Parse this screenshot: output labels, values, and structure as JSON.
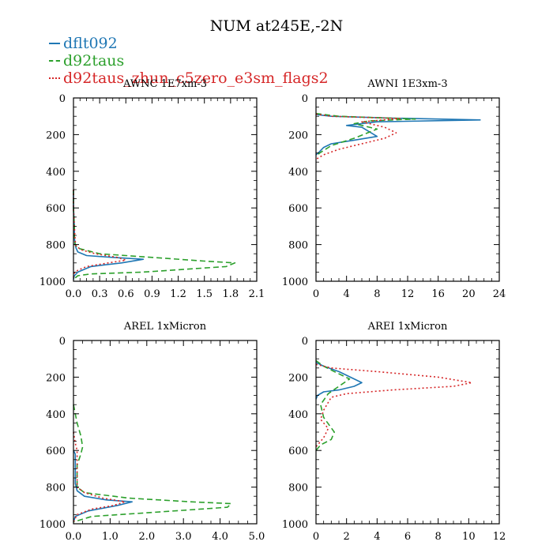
{
  "figure": {
    "title": "NUM at245E,-2N"
  },
  "legend": [
    {
      "name": "dflt092",
      "color": "#1f77b4",
      "style": "solid"
    },
    {
      "name": "d92taus",
      "color": "#2ca02c",
      "style": "dashed"
    },
    {
      "name": "d92taus_zhun_c5zero_e3sm_flags2",
      "color": "#d62728",
      "style": "dotted"
    }
  ],
  "chart_data": [
    {
      "type": "line",
      "title": "AWNC  1E7xm-3",
      "xlim": [
        0,
        2.1
      ],
      "ylim": [
        1000,
        0
      ],
      "xticks": [
        "0.0",
        "0.3",
        "0.6",
        "0.9",
        "1.2",
        "1.5",
        "1.8",
        "2.1"
      ],
      "xtick_values": [
        0,
        0.3,
        0.6,
        0.9,
        1.2,
        1.5,
        1.8,
        2.1
      ],
      "yticks": [
        "0",
        "200",
        "400",
        "600",
        "800",
        "1000"
      ],
      "ytick_values": [
        0,
        200,
        400,
        600,
        800,
        1000
      ],
      "series": [
        {
          "name": "dflt092",
          "color": "#1f77b4",
          "dash": "",
          "x": [
            0,
            0,
            0.01,
            0.01,
            0.02,
            0.03,
            0.05,
            0.15,
            0.45,
            0.8,
            0.55,
            0.2,
            0.05,
            0.01,
            0
          ],
          "y": [
            500,
            600,
            700,
            760,
            800,
            820,
            840,
            860,
            870,
            880,
            900,
            920,
            950,
            970,
            990
          ]
        },
        {
          "name": "d92taus",
          "color": "#2ca02c",
          "dash": "7,4",
          "x": [
            0,
            0,
            0.01,
            0.01,
            0.02,
            0.05,
            0.3,
            0.9,
            1.5,
            1.85,
            1.75,
            0.8,
            0.2,
            0.05,
            0
          ],
          "y": [
            500,
            600,
            700,
            760,
            800,
            820,
            850,
            870,
            890,
            900,
            920,
            950,
            960,
            970,
            990
          ]
        },
        {
          "name": "d92taus_zhun_c5zero_e3sm_flags2",
          "color": "#d62728",
          "dash": "2,3",
          "x": [
            0,
            0,
            0.01,
            0.02,
            0.03,
            0.1,
            0.25,
            0.5,
            0.6,
            0.4,
            0.15,
            0.05,
            0.01,
            0
          ],
          "y": [
            500,
            600,
            700,
            780,
            810,
            830,
            850,
            870,
            885,
            900,
            920,
            940,
            955,
            980
          ]
        }
      ]
    },
    {
      "type": "line",
      "title": "AWNI  1E3xm-3",
      "xlim": [
        0,
        24
      ],
      "ylim": [
        1000,
        0
      ],
      "xticks": [
        "0",
        "4",
        "8",
        "12",
        "16",
        "20",
        "24"
      ],
      "xtick_values": [
        0,
        4,
        8,
        12,
        16,
        20,
        24
      ],
      "yticks": [
        "0",
        "200",
        "400",
        "600",
        "800",
        "1000"
      ],
      "ytick_values": [
        0,
        200,
        400,
        600,
        800,
        1000
      ],
      "series": [
        {
          "name": "dflt092",
          "color": "#1f77b4",
          "dash": "",
          "x": [
            0,
            2,
            10,
            21.5,
            8,
            4,
            6,
            8,
            5,
            2,
            1,
            0.3,
            0
          ],
          "y": [
            90,
            100,
            110,
            120,
            130,
            150,
            160,
            210,
            230,
            250,
            270,
            300,
            310
          ]
        },
        {
          "name": "d92taus",
          "color": "#2ca02c",
          "dash": "7,4",
          "x": [
            0,
            3,
            13,
            7,
            5,
            8,
            5,
            2,
            0.5,
            0
          ],
          "y": [
            85,
            100,
            115,
            125,
            140,
            170,
            220,
            260,
            300,
            320
          ]
        },
        {
          "name": "d92taus_zhun_c5zero_e3sm_flags2",
          "color": "#d62728",
          "dash": "2,3",
          "x": [
            0,
            2,
            11,
            6,
            9,
            10.5,
            9,
            6,
            3,
            1,
            0.2,
            0
          ],
          "y": [
            88,
            100,
            112,
            130,
            160,
            190,
            220,
            250,
            280,
            310,
            330,
            340
          ]
        }
      ]
    },
    {
      "type": "line",
      "title": "AREL  1xMicron",
      "xlim": [
        0,
        5.0
      ],
      "ylim": [
        1000,
        0
      ],
      "xticks": [
        "0.0",
        "1.0",
        "2.0",
        "3.0",
        "4.0",
        "5.0"
      ],
      "xtick_values": [
        0,
        1,
        2,
        3,
        4,
        5
      ],
      "yticks": [
        "0",
        "200",
        "400",
        "600",
        "800",
        "1000"
      ],
      "ytick_values": [
        0,
        200,
        400,
        600,
        800,
        1000
      ],
      "series": [
        {
          "name": "dflt092",
          "color": "#1f77b4",
          "dash": "",
          "x": [
            0,
            0.05,
            0.05,
            0.05,
            0.05,
            0.1,
            0.3,
            0.9,
            1.6,
            1.2,
            0.4,
            0.05,
            0
          ],
          "y": [
            600,
            620,
            660,
            720,
            780,
            820,
            850,
            870,
            880,
            900,
            930,
            960,
            990
          ]
        },
        {
          "name": "d92taus",
          "color": "#2ca02c",
          "dash": "7,4",
          "x": [
            0,
            0.1,
            0.2,
            0.25,
            0.2,
            0.1,
            0.1,
            0.3,
            1.5,
            3.2,
            4.3,
            4.2,
            2.0,
            0.5,
            0
          ],
          "y": [
            350,
            450,
            520,
            580,
            620,
            680,
            800,
            830,
            860,
            880,
            890,
            910,
            940,
            960,
            990
          ]
        },
        {
          "name": "d92taus_zhun_c5zero_e3sm_flags2",
          "color": "#d62728",
          "dash": "2,3",
          "x": [
            0,
            0.05,
            0.1,
            0.1,
            0.1,
            0.3,
            0.8,
            1.4,
            1.1,
            0.5,
            0.1,
            0
          ],
          "y": [
            500,
            560,
            600,
            700,
            800,
            830,
            860,
            880,
            900,
            920,
            950,
            990
          ]
        }
      ]
    },
    {
      "type": "line",
      "title": "AREI  1xMicron",
      "xlim": [
        0,
        12
      ],
      "ylim": [
        1000,
        0
      ],
      "xticks": [
        "0",
        "2",
        "4",
        "6",
        "8",
        "10",
        "12"
      ],
      "xtick_values": [
        0,
        2,
        4,
        6,
        8,
        10,
        12
      ],
      "yticks": [
        "0",
        "200",
        "400",
        "600",
        "800",
        "1000"
      ],
      "ytick_values": [
        0,
        200,
        400,
        600,
        800,
        1000
      ],
      "series": [
        {
          "name": "dflt092",
          "color": "#1f77b4",
          "dash": "",
          "x": [
            0,
            0.5,
            1.5,
            3.0,
            2.5,
            1.5,
            0.5,
            0.1,
            0
          ],
          "y": [
            120,
            140,
            170,
            230,
            250,
            270,
            280,
            300,
            320
          ]
        },
        {
          "name": "d92taus",
          "color": "#2ca02c",
          "dash": "7,4",
          "x": [
            0,
            0.5,
            1.2,
            2.2,
            1.5,
            0.8,
            0.3,
            0.5,
            1.2,
            1.0,
            0.3,
            0
          ],
          "y": [
            110,
            140,
            170,
            210,
            250,
            290,
            350,
            420,
            500,
            540,
            570,
            600
          ]
        },
        {
          "name": "d92taus_zhun_c5zero_e3sm_flags2",
          "color": "#d62728",
          "dash": "2,3",
          "x": [
            0,
            1,
            4,
            8,
            10.2,
            9,
            5,
            2,
            1,
            0.5,
            0.3,
            0.8,
            0.5,
            0
          ],
          "y": [
            130,
            150,
            170,
            200,
            230,
            250,
            270,
            290,
            310,
            380,
            430,
            480,
            530,
            580
          ]
        }
      ]
    }
  ]
}
